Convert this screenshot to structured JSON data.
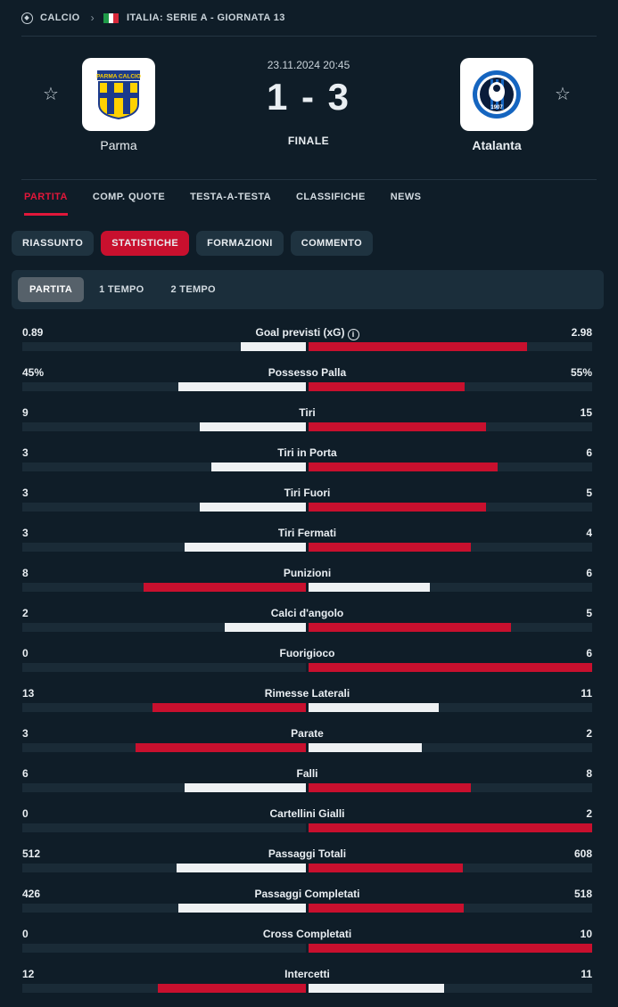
{
  "breadcrumb": {
    "sport": "CALCIO",
    "competition": "ITALIA: SERIE A - GIORNATA 13"
  },
  "match": {
    "datetime": "23.11.2024 20:45",
    "score": "1 - 3",
    "status": "FINALE",
    "home": {
      "name": "Parma",
      "logo_text": "PARMA CALCIO"
    },
    "away": {
      "name": "Atalanta",
      "logo_text": "1907"
    }
  },
  "tabs": [
    "PARTITA",
    "COMP. QUOTE",
    "TESTA-A-TESTA",
    "CLASSIFICHE",
    "NEWS"
  ],
  "subtabs": [
    "RIASSUNTO",
    "STATISTICHE",
    "FORMAZIONI",
    "COMMENTO"
  ],
  "periods": [
    "PARTITA",
    "1 TEMPO",
    "2 TEMPO"
  ],
  "colors": {
    "winner_bar": "#c8102e",
    "other_bar": "#eef1f3",
    "active_tab": "#e1173a"
  },
  "stats": [
    {
      "label": "Goal previsti (xG)",
      "home": "0.89",
      "away": "2.98",
      "h": 0.89,
      "a": 2.98,
      "info": true
    },
    {
      "label": "Possesso Palla",
      "home": "45%",
      "away": "55%",
      "h": 45,
      "a": 55
    },
    {
      "label": "Tiri",
      "home": "9",
      "away": "15",
      "h": 9,
      "a": 15
    },
    {
      "label": "Tiri in Porta",
      "home": "3",
      "away": "6",
      "h": 3,
      "a": 6
    },
    {
      "label": "Tiri Fuori",
      "home": "3",
      "away": "5",
      "h": 3,
      "a": 5
    },
    {
      "label": "Tiri Fermati",
      "home": "3",
      "away": "4",
      "h": 3,
      "a": 4
    },
    {
      "label": "Punizioni",
      "home": "8",
      "away": "6",
      "h": 8,
      "a": 6
    },
    {
      "label": "Calci d'angolo",
      "home": "2",
      "away": "5",
      "h": 2,
      "a": 5
    },
    {
      "label": "Fuorigioco",
      "home": "0",
      "away": "6",
      "h": 0,
      "a": 6
    },
    {
      "label": "Rimesse Laterali",
      "home": "13",
      "away": "11",
      "h": 13,
      "a": 11
    },
    {
      "label": "Parate",
      "home": "3",
      "away": "2",
      "h": 3,
      "a": 2
    },
    {
      "label": "Falli",
      "home": "6",
      "away": "8",
      "h": 6,
      "a": 8
    },
    {
      "label": "Cartellini Gialli",
      "home": "0",
      "away": "2",
      "h": 0,
      "a": 2
    },
    {
      "label": "Passaggi Totali",
      "home": "512",
      "away": "608",
      "h": 512,
      "a": 608
    },
    {
      "label": "Passaggi Completati",
      "home": "426",
      "away": "518",
      "h": 426,
      "a": 518
    },
    {
      "label": "Cross Completati",
      "home": "0",
      "away": "10",
      "h": 0,
      "a": 10
    },
    {
      "label": "Intercetti",
      "home": "12",
      "away": "11",
      "h": 12,
      "a": 11
    }
  ]
}
